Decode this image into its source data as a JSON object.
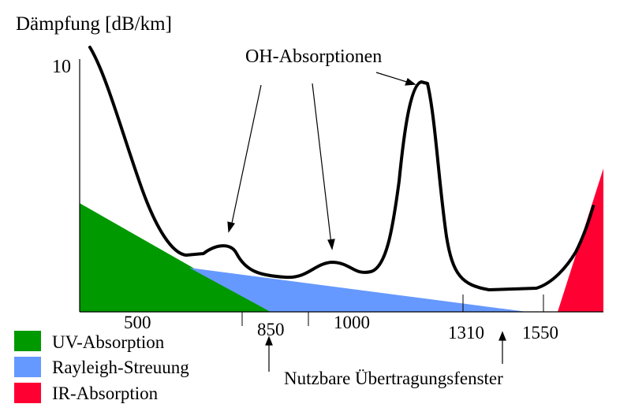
{
  "chart_data": {
    "type": "line",
    "title": "",
    "ylabel": "Dämpfung [dB/km]",
    "y_tick": "10",
    "x_ticks": [
      "500",
      "850",
      "1000",
      "1310",
      "1550"
    ],
    "annotations": {
      "oh": "OH-Absorptionen",
      "window": "Nutzbare Übertragungsfenster"
    },
    "legend": [
      {
        "label": "UV-Absorption",
        "color": "#009900"
      },
      {
        "label": "Rayleigh-Streuung",
        "color": "#6699ff"
      },
      {
        "label": "IR-Absorption",
        "color": "#ff0033"
      }
    ],
    "series": [
      {
        "name": "Dämpfung",
        "color": "#000000"
      }
    ],
    "grid": false,
    "legend_position": "bottom-left"
  }
}
